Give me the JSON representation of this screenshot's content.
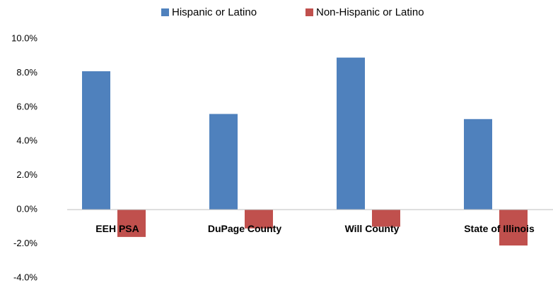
{
  "chart_data": {
    "type": "bar",
    "categories": [
      "EEH PSA",
      "DuPage County",
      "Will County",
      "State of Illinois"
    ],
    "series": [
      {
        "name": "Hispanic or Latino",
        "color": "#4f81bd",
        "values": [
          8.1,
          5.6,
          8.9,
          5.3
        ]
      },
      {
        "name": "Non-Hispanic or Latino",
        "color": "#c0504d",
        "values": [
          -1.6,
          -1.1,
          -1.0,
          -2.1
        ]
      }
    ],
    "ylim": [
      -4,
      10
    ],
    "yticks": [
      {
        "value": -4,
        "label": "-4.0%"
      },
      {
        "value": -2,
        "label": "-2.0%"
      },
      {
        "value": 0,
        "label": "0.0%"
      },
      {
        "value": 2,
        "label": "2.0%"
      },
      {
        "value": 4,
        "label": "4.0%"
      },
      {
        "value": 6,
        "label": "6.0%"
      },
      {
        "value": 8,
        "label": "8.0%"
      },
      {
        "value": 10,
        "label": "10.0%"
      }
    ],
    "grid": false,
    "legend": "top"
  }
}
